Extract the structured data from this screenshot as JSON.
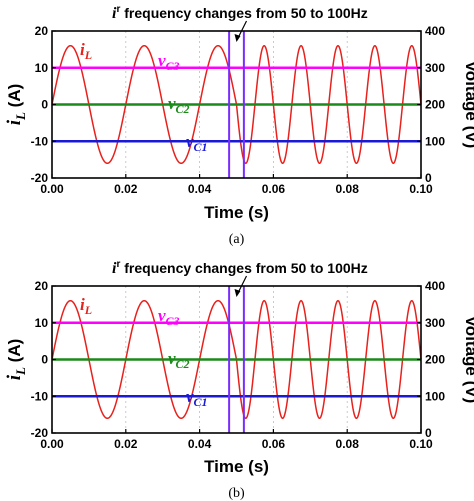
{
  "chart_data": [
    {
      "panel_label": "(a)",
      "type": "line",
      "title": "",
      "xlabel": "Time (s)",
      "xlim": [
        0.0,
        0.1
      ],
      "x_ticks": [
        "0.00",
        "0.02",
        "0.04",
        "0.06",
        "0.08",
        "0.10"
      ],
      "y_left_label": {
        "main": "i",
        "sub": "L",
        "unit": " (A)"
      },
      "y_left_lim": [
        -20,
        20
      ],
      "y_left_ticks": [
        "-20",
        "-10",
        "0",
        "10",
        "20"
      ],
      "y_right_label": "Voltage (V)",
      "y_right_lim": [
        0,
        400
      ],
      "y_right_ticks": [
        "0",
        "100",
        "200",
        "300",
        "400"
      ],
      "grid": true,
      "annotation": {
        "main": "i",
        "sup": "r",
        "rest": " frequency changes from 50 to 100Hz",
        "x_from": 0.048,
        "x_to": 0.052
      },
      "series": [
        {
          "name": "i_L",
          "label_main": "i",
          "label_sub": "L",
          "axis": "left",
          "color": "#e8211c",
          "waveform": "sine",
          "amplitude": 16,
          "freq_before_hz": 50,
          "freq_after_hz": 100,
          "switch_time": 0.05,
          "x_range": [
            0.0,
            0.1
          ]
        },
        {
          "name": "v_C3",
          "label_main": "v",
          "label_sub": "C3",
          "axis": "right",
          "color": "#ff00ff",
          "waveform": "constant",
          "value": 300
        },
        {
          "name": "v_C2",
          "label_main": "v",
          "label_sub": "C2",
          "axis": "right",
          "color": "#1a8a1a",
          "waveform": "constant",
          "value": 200
        },
        {
          "name": "v_C1",
          "label_main": "v",
          "label_sub": "C1",
          "axis": "right",
          "color": "#1a1ad6",
          "waveform": "constant",
          "value": 100
        }
      ]
    },
    {
      "panel_label": "(b)",
      "type": "line",
      "title": "",
      "xlabel": "Time (s)",
      "xlim": [
        0.0,
        0.1
      ],
      "x_ticks": [
        "0.00",
        "0.02",
        "0.04",
        "0.06",
        "0.08",
        "0.10"
      ],
      "y_left_label": {
        "main": "i",
        "sub": "L",
        "unit": " (A)"
      },
      "y_left_lim": [
        -20,
        20
      ],
      "y_left_ticks": [
        "-20",
        "-10",
        "0",
        "10",
        "20"
      ],
      "y_right_label": "Voltage (V)",
      "y_right_lim": [
        0,
        400
      ],
      "y_right_ticks": [
        "0",
        "100",
        "200",
        "300",
        "400"
      ],
      "grid": true,
      "annotation": {
        "main": "i",
        "sup": "r",
        "rest": " frequency changes from 50 to 100Hz",
        "x_from": 0.048,
        "x_to": 0.052
      },
      "series": [
        {
          "name": "i_L",
          "label_main": "i",
          "label_sub": "L",
          "axis": "left",
          "color": "#e8211c",
          "waveform": "sine",
          "amplitude": 16,
          "freq_before_hz": 50,
          "freq_after_hz": 100,
          "switch_time": 0.05,
          "x_range": [
            0.0,
            0.1
          ]
        },
        {
          "name": "v_C3",
          "label_main": "v",
          "label_sub": "C3",
          "axis": "right",
          "color": "#ff00ff",
          "waveform": "constant",
          "value": 300
        },
        {
          "name": "v_C2",
          "label_main": "v",
          "label_sub": "C2",
          "axis": "right",
          "color": "#1a8a1a",
          "waveform": "constant",
          "value": 200
        },
        {
          "name": "v_C1",
          "label_main": "v",
          "label_sub": "C1",
          "axis": "right",
          "color": "#1a1ad6",
          "waveform": "constant",
          "value": 100
        }
      ]
    }
  ]
}
